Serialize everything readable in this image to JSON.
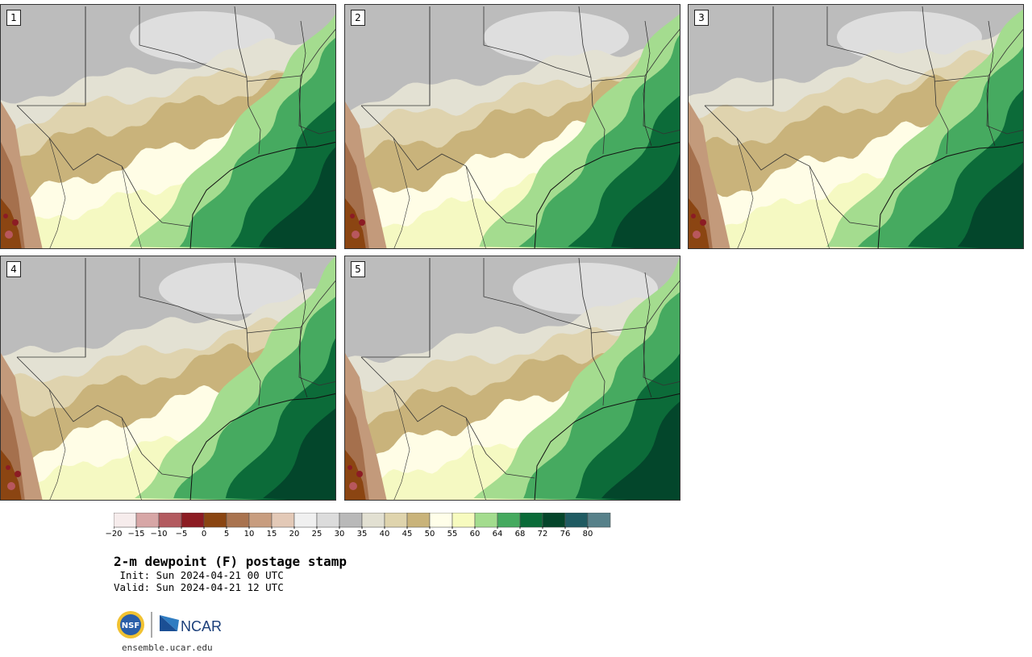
{
  "panels": [
    {
      "label": "1",
      "variant": 0
    },
    {
      "label": "2",
      "variant": 1
    },
    {
      "label": "3",
      "variant": 2
    },
    {
      "label": "4",
      "variant": 3
    },
    {
      "label": "5",
      "variant": 4
    }
  ],
  "colorbar": {
    "ticks": [
      "−20",
      "−15",
      "−10",
      "−5",
      "0",
      "5",
      "10",
      "15",
      "20",
      "25",
      "30",
      "35",
      "40",
      "45",
      "50",
      "55",
      "60",
      "64",
      "68",
      "72",
      "76",
      "80"
    ],
    "colors": [
      "#f6ecec",
      "#d7a6a6",
      "#b35a5f",
      "#8c1b22",
      "#8a4511",
      "#a9734f",
      "#c89d7f",
      "#e3c9b7",
      "#f0f0f0",
      "#dcdcdc",
      "#b9b9b9",
      "#e2e0d2",
      "#dfd4ad",
      "#c9b37a",
      "#fffee9",
      "#f7fbbf",
      "#a3dc8e",
      "#45aa5f",
      "#0a6b38",
      "#04452a",
      "#1f5b62",
      "#57818a"
    ]
  },
  "title": "2-m dewpoint (F) postage stamp",
  "init": " Init: Sun 2024-04-21 00 UTC",
  "valid": "Valid: Sun 2024-04-21 12 UTC",
  "logos": {
    "nsf": "NSF",
    "ncar": "NCAR"
  },
  "site": "ensemble.ucar.edu"
}
